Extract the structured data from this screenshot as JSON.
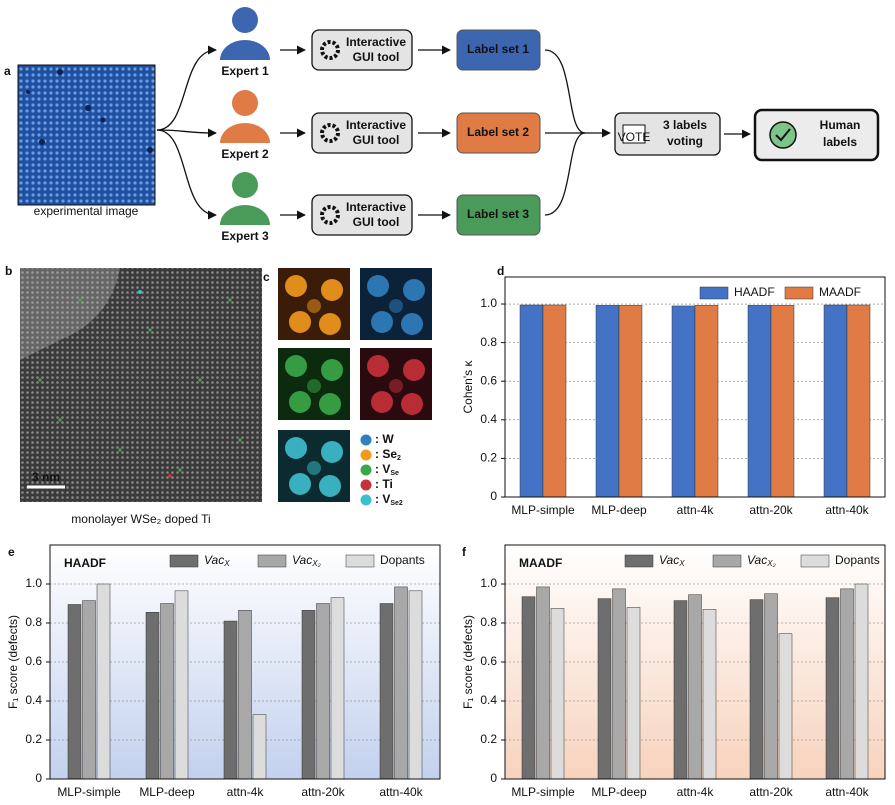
{
  "panels": {
    "a": {
      "letter": "a",
      "image_caption": "experimental image",
      "experts": [
        {
          "name": "Expert 1",
          "color": "#3d66b0",
          "tool": [
            "Interactive",
            "GUI tool"
          ],
          "label_set": "Label set 1"
        },
        {
          "name": "Expert 2",
          "color": "#e07b45",
          "tool": [
            "Interactive",
            "GUI tool"
          ],
          "label_set": "Label set 2"
        },
        {
          "name": "Expert 3",
          "color": "#4a9a5a",
          "tool": [
            "Interactive",
            "GUI tool"
          ],
          "label_set": "Label set 3"
        }
      ],
      "vote_icon": "VOTE",
      "voting": [
        "3 labels",
        "voting"
      ],
      "result": [
        "Human",
        "labels"
      ]
    },
    "b": {
      "letter": "b",
      "scale": "3 nm",
      "caption": "monolayer WSe₂ doped Ti"
    },
    "c": {
      "letter": "c",
      "legend": [
        {
          "color": "#2f7fc1",
          "label": ": W"
        },
        {
          "color": "#f39a1e",
          "label": ": Se",
          "sub": "2"
        },
        {
          "color": "#3aa84a",
          "label": ": V",
          "sub": "Se"
        },
        {
          "color": "#c8303a",
          "label": ": Ti"
        },
        {
          "color": "#3ebfcf",
          "label": ": V",
          "sub": "Se2"
        }
      ]
    }
  },
  "chart_data": [
    {
      "type": "bar",
      "letter": "d",
      "ylabel": "Cohen's κ",
      "categories": [
        "MLP-simple",
        "MLP-deep",
        "attn-4k",
        "attn-20k",
        "attn-40k"
      ],
      "series": [
        {
          "name": "HAADF",
          "color": "#4472c4",
          "values": [
            0.995,
            0.993,
            0.99,
            0.993,
            0.995
          ]
        },
        {
          "name": "MAADF",
          "color": "#e07b45",
          "values": [
            0.995,
            0.993,
            0.993,
            0.993,
            0.995
          ]
        }
      ],
      "ylim": [
        0,
        1.14
      ],
      "yticks": [
        0,
        0.2,
        0.4,
        0.6,
        0.8,
        {
          "value": 1,
          "label": "1.0"
        }
      ],
      "grid": true,
      "legend": "upper right"
    },
    {
      "type": "bar",
      "letter": "e",
      "title": "HAADF",
      "title_color": "#4a72b8",
      "background": "#c3d1ee",
      "ylabel": "F₁ score (defects)",
      "categories": [
        "MLP-simple",
        "MLP-deep",
        "attn-4k",
        "attn-20k",
        "attn-40k"
      ],
      "series": [
        {
          "name": "Vac",
          "name_sub": "X",
          "color": "#6e6e6e",
          "values": [
            0.895,
            0.855,
            0.81,
            0.865,
            0.9
          ]
        },
        {
          "name": "Vac",
          "name_sub": "X₂",
          "color": "#a8a8a8",
          "values": [
            0.915,
            0.9,
            0.865,
            0.9,
            0.985
          ]
        },
        {
          "name": "Dopants",
          "color": "#dcdcdc",
          "values": [
            1.0,
            0.965,
            0.33,
            0.93,
            0.965
          ]
        }
      ],
      "ylim": [
        0,
        1.2
      ],
      "yticks": [
        0,
        0.2,
        0.4,
        0.6,
        0.8,
        {
          "value": 1,
          "label": "1.0"
        }
      ],
      "grid": true,
      "legend": "upper right"
    },
    {
      "type": "bar",
      "letter": "f",
      "title": "MAADF",
      "title_color": "#e07b45",
      "background": "#f7d3bd",
      "ylabel": "F₁ score (defects)",
      "categories": [
        "MLP-simple",
        "MLP-deep",
        "attn-4k",
        "attn-20k",
        "attn-40k"
      ],
      "series": [
        {
          "name": "Vac",
          "name_sub": "X",
          "color": "#6e6e6e",
          "values": [
            0.935,
            0.925,
            0.915,
            0.92,
            0.93
          ]
        },
        {
          "name": "Vac",
          "name_sub": "X₂",
          "color": "#a8a8a8",
          "values": [
            0.985,
            0.975,
            0.945,
            0.95,
            0.975
          ]
        },
        {
          "name": "Dopants",
          "color": "#dcdcdc",
          "values": [
            0.875,
            0.88,
            0.87,
            0.745,
            1.0
          ]
        }
      ],
      "ylim": [
        0,
        1.2
      ],
      "yticks": [
        0,
        0.2,
        0.4,
        0.6,
        0.8,
        {
          "value": 1,
          "label": "1.0"
        }
      ],
      "grid": true,
      "legend": "upper right"
    }
  ]
}
